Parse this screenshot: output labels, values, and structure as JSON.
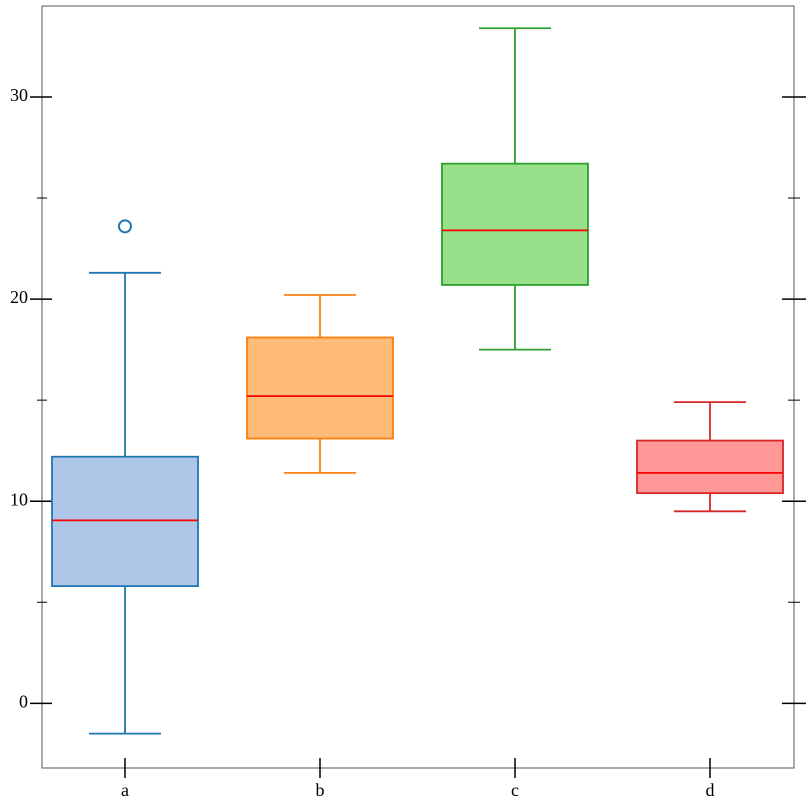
{
  "chart_data": {
    "type": "box",
    "series": [
      {
        "name": "a",
        "color": "#1f77b4",
        "fill": "#aec7e8",
        "whislo": -1.5,
        "q1": 5.8,
        "med": 9.05,
        "q3": 12.2,
        "whishi": 21.3,
        "fliers": [
          23.6
        ]
      },
      {
        "name": "b",
        "color": "#ff7f0e",
        "fill": "#ffbb78",
        "whislo": 11.4,
        "q1": 13.1,
        "med": 15.2,
        "q3": 18.1,
        "whishi": 20.2,
        "fliers": []
      },
      {
        "name": "c",
        "color": "#2ca02c",
        "fill": "#98df8a",
        "whislo": 17.5,
        "q1": 20.7,
        "med": 23.4,
        "q3": 26.7,
        "whishi": 33.4,
        "fliers": []
      },
      {
        "name": "d",
        "color": "#d62728",
        "fill": "#ff9896",
        "whislo": 9.5,
        "q1": 10.4,
        "med": 11.4,
        "q3": 13.0,
        "whishi": 14.9,
        "fliers": []
      }
    ],
    "median_color": "#ff0000",
    "ylim": [
      -3.2,
      34.5
    ],
    "yticks": [
      0,
      10,
      20,
      30
    ],
    "minor_yticks": [
      5,
      15,
      25
    ]
  }
}
